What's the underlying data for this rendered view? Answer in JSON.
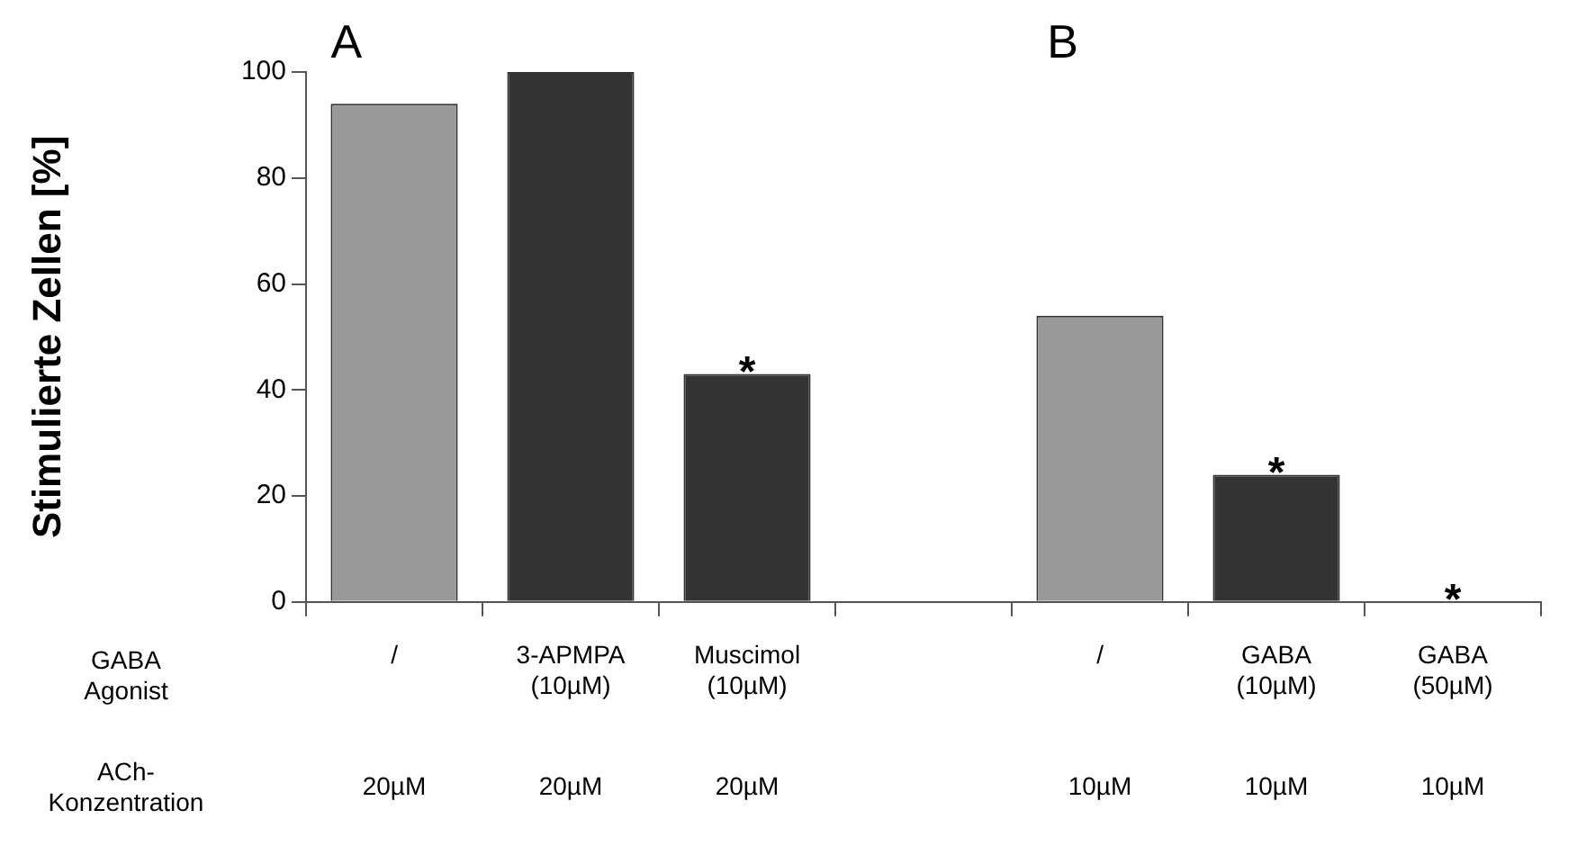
{
  "chart_data": {
    "type": "bar",
    "ylabel": "Stimulierte Zellen [%]",
    "categories": [
      "/",
      "3-APMPA\n(10µM)",
      "Muscimol\n(10µM)",
      null,
      "/",
      "GABA\n(10µM)",
      "GABA\n(50µM)"
    ],
    "values": [
      94,
      100,
      43,
      null,
      54,
      24,
      0
    ],
    "colors": [
      "#999999",
      "#333333",
      "#333333",
      "#999999",
      "#999999",
      "#333333",
      "#333333"
    ],
    "ylim": [
      0,
      100
    ],
    "yticks": [
      0,
      20,
      40,
      60,
      80,
      100
    ],
    "grid": false,
    "legend": false,
    "annotations": [
      "A",
      "B",
      "GABA\nAgonist",
      "ACh-\nKonzentration",
      "20µM",
      "20µM",
      "20µM",
      "10µM",
      "10µM",
      "10µM",
      {
        "text": "*",
        "x": "Muscimol\n(10µM)",
        "y": 43
      },
      {
        "text": "*",
        "x": "GABA\n(10µM)",
        "y": 24
      },
      {
        "text": "*",
        "x": "GABA\n(50µM)",
        "y": 0
      }
    ]
  }
}
